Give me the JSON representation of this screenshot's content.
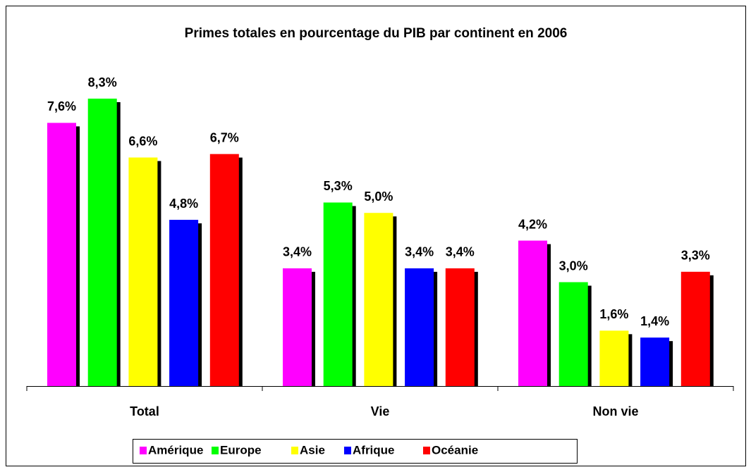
{
  "chart_data": {
    "type": "bar",
    "title": "Primes totales en pourcentage du PIB par continent en 2006",
    "categories": [
      "Total",
      "Vie",
      "Non vie"
    ],
    "series": [
      {
        "name": "Amérique",
        "color": "#ff00ff",
        "values": [
          7.6,
          3.4,
          4.2
        ],
        "value_labels": [
          "7,6%",
          "3,4%",
          "4,2%"
        ]
      },
      {
        "name": "Europe",
        "color": "#00ff00",
        "values": [
          8.3,
          5.3,
          3.0
        ],
        "value_labels": [
          "8,3%",
          "5,3%",
          "3,0%"
        ]
      },
      {
        "name": "Asie",
        "color": "#ffff00",
        "values": [
          6.6,
          5.0,
          1.6
        ],
        "value_labels": [
          "6,6%",
          "5,0%",
          "1,6%"
        ]
      },
      {
        "name": "Afrique",
        "color": "#0000ff",
        "values": [
          4.8,
          3.4,
          1.4
        ],
        "value_labels": [
          "4,8%",
          "3,4%",
          "1,4%"
        ]
      },
      {
        "name": "Océanie",
        "color": "#ff0000",
        "values": [
          6.7,
          3.4,
          3.3
        ],
        "value_labels": [
          "6,7%",
          "3,4%",
          "3,3%"
        ]
      }
    ],
    "legend": "bottom"
  }
}
